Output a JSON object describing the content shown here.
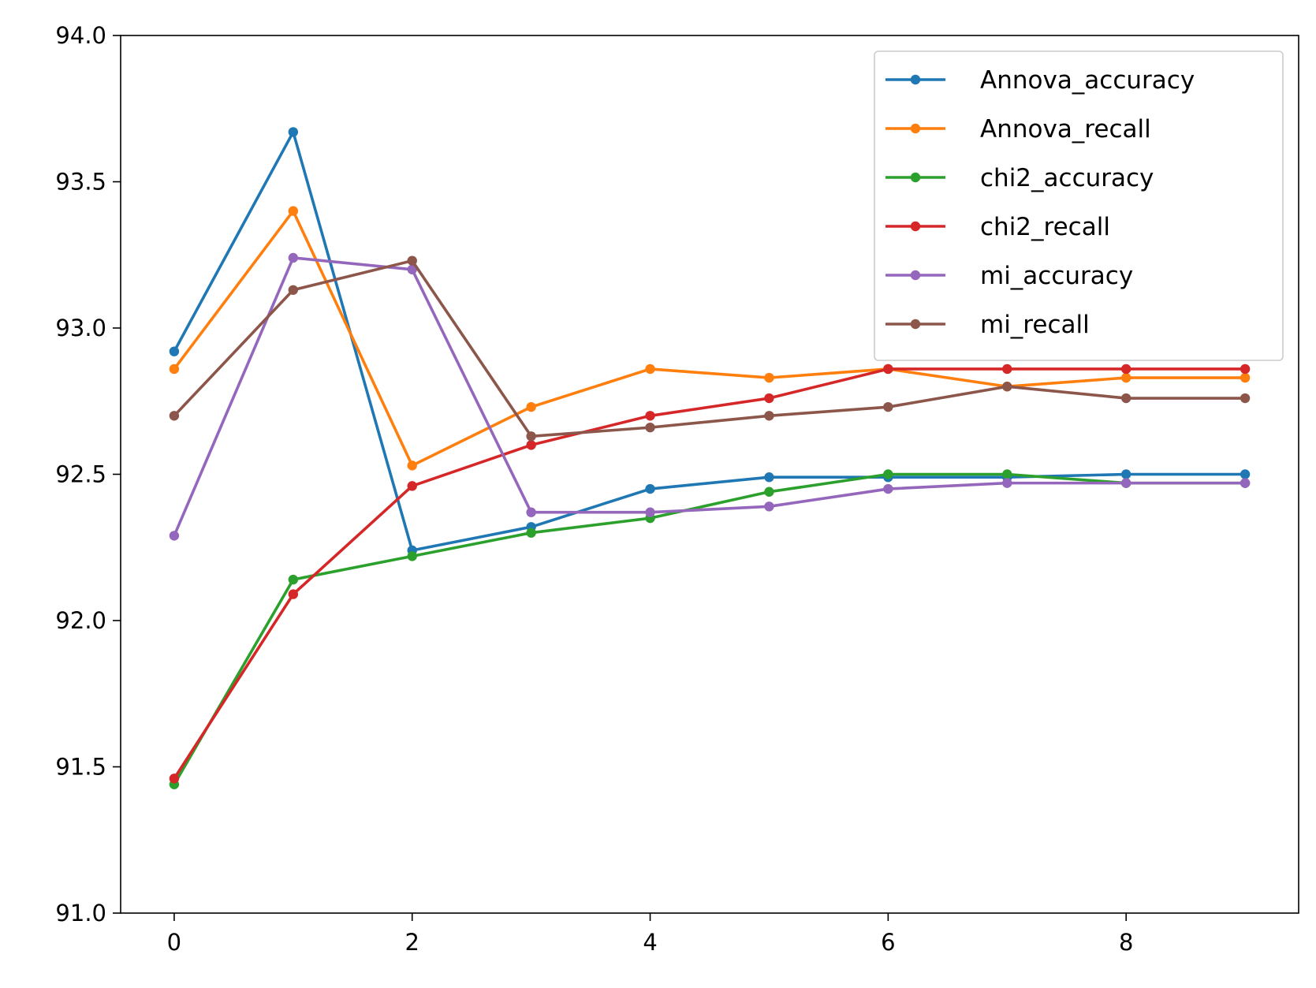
{
  "chart_data": {
    "type": "line",
    "title": "",
    "xlabel": "",
    "ylabel": "",
    "x": [
      0,
      1,
      2,
      3,
      4,
      5,
      6,
      7,
      8,
      9
    ],
    "xlim": [
      -0.45,
      9.45
    ],
    "ylim": [
      91.0,
      94.0
    ],
    "xticks": [
      0,
      2,
      4,
      6,
      8
    ],
    "yticks": [
      91.0,
      91.5,
      92.0,
      92.5,
      93.0,
      93.5,
      94.0
    ],
    "xtick_labels": [
      "0",
      "2",
      "4",
      "6",
      "8"
    ],
    "ytick_labels": [
      "91.0",
      "91.5",
      "92.0",
      "92.5",
      "93.0",
      "93.5",
      "94.0"
    ],
    "grid": false,
    "legend_position": "top-right",
    "series": [
      {
        "name": "Annova_accuracy",
        "color": "#1f77b4",
        "values": [
          92.92,
          93.67,
          92.24,
          92.32,
          92.45,
          92.49,
          92.49,
          92.49,
          92.5,
          92.5
        ]
      },
      {
        "name": "Annova_recall",
        "color": "#ff7f0e",
        "values": [
          92.86,
          93.4,
          92.53,
          92.73,
          92.86,
          92.83,
          92.86,
          92.8,
          92.83,
          92.83
        ]
      },
      {
        "name": "chi2_accuracy",
        "color": "#2ca02c",
        "values": [
          91.44,
          92.14,
          92.22,
          92.3,
          92.35,
          92.44,
          92.5,
          92.5,
          92.47,
          92.47
        ]
      },
      {
        "name": "chi2_recall",
        "color": "#d62728",
        "values": [
          91.46,
          92.09,
          92.46,
          92.6,
          92.7,
          92.76,
          92.86,
          92.86,
          92.86,
          92.86
        ]
      },
      {
        "name": "mi_accuracy",
        "color": "#9467bd",
        "values": [
          92.29,
          93.24,
          93.2,
          92.37,
          92.37,
          92.39,
          92.45,
          92.47,
          92.47,
          92.47
        ]
      },
      {
        "name": "mi_recall",
        "color": "#8c564b",
        "values": [
          92.7,
          93.13,
          93.23,
          92.63,
          92.66,
          92.7,
          92.73,
          92.8,
          92.76,
          92.76
        ]
      }
    ]
  }
}
